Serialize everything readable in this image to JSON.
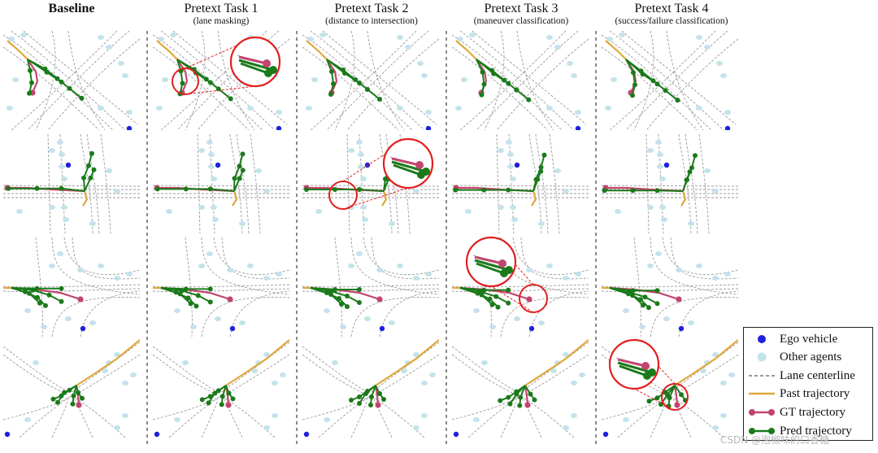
{
  "columns": [
    {
      "title": "Baseline",
      "subtitle": ""
    },
    {
      "title": "Pretext Task 1",
      "subtitle": "(lane masking)"
    },
    {
      "title": "Pretext Task 2",
      "subtitle": "(distance to intersection)"
    },
    {
      "title": "Pretext Task 3",
      "subtitle": "(maneuver classification)"
    },
    {
      "title": "Pretext Task 4",
      "subtitle": "(success/failure classification)"
    }
  ],
  "legend": [
    {
      "key": "ego",
      "label": "Ego vehicle",
      "color": "#1f1fe0",
      "symbol": "dot"
    },
    {
      "key": "other",
      "label": "Other agents",
      "color": "#c4e2ea",
      "symbol": "dot"
    },
    {
      "key": "lane",
      "label": "Lane centerline",
      "color": "#777777",
      "symbol": "dashed"
    },
    {
      "key": "past",
      "label": "Past trajectory",
      "color": "#e0a83a",
      "symbol": "line"
    },
    {
      "key": "gt",
      "label": "GT trajectory",
      "color": "#c2456e",
      "symbol": "line-dot"
    },
    {
      "key": "pred",
      "label": "Pred trajectory",
      "color": "#1a7a1a",
      "symbol": "line-dot"
    }
  ],
  "zoom_color": "#e02020",
  "watermark": "CSDN @泡椒味的口香糖"
}
